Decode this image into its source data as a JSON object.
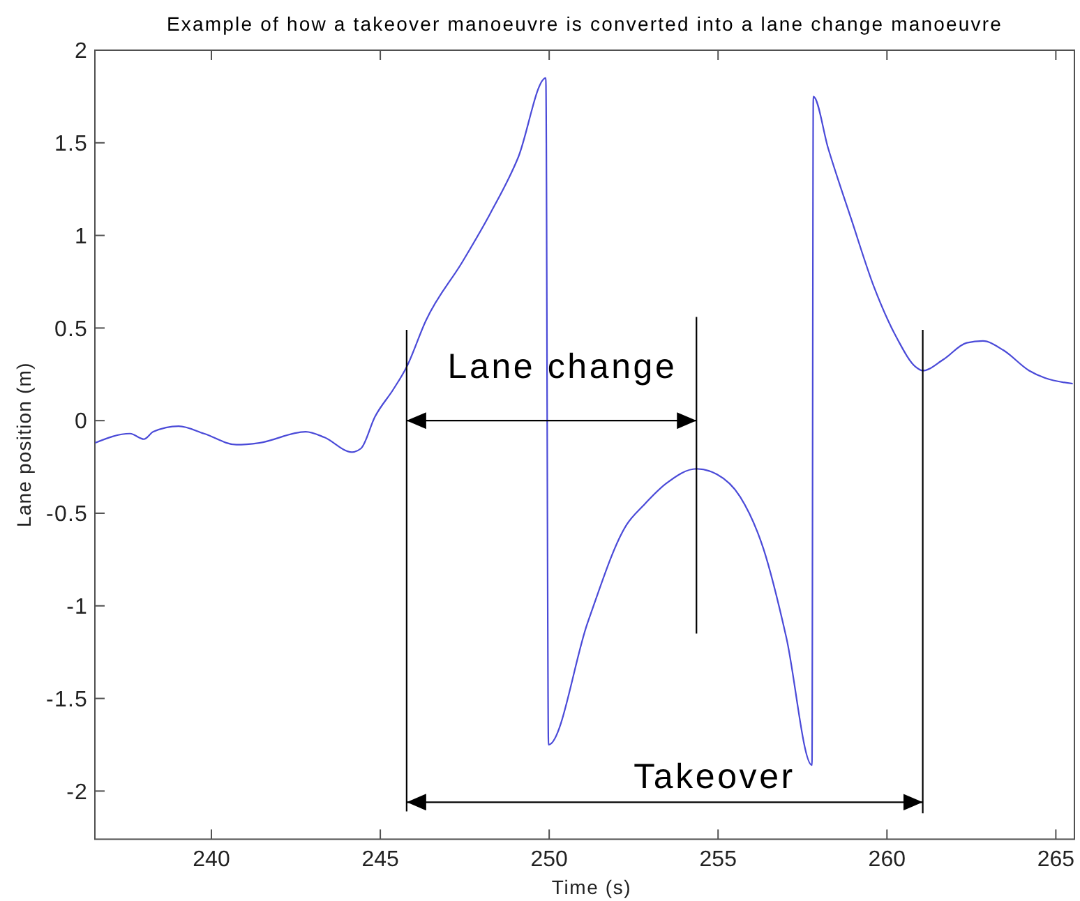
{
  "chart_data": {
    "type": "line",
    "title": "Example of how a takeover manoeuvre is converted into a lane change manoeuvre",
    "xlabel": "Time (s)",
    "ylabel": "Lane position (m)",
    "xlim": [
      236.55,
      265.55
    ],
    "xticks": [
      240,
      245,
      250,
      255,
      260,
      265
    ],
    "ylim": [
      -2.26,
      2
    ],
    "yticks": [
      -2,
      -1.5,
      -1,
      -0.5,
      0,
      0.5,
      1,
      1.5,
      2
    ],
    "series": [
      {
        "color": "#4a4ad8",
        "x": [
          236.56,
          237.59,
          238.0,
          238.28,
          239.03,
          239.78,
          240.74,
          241.42,
          242.79,
          243.34,
          244.16,
          244.43,
          244.84,
          245.39,
          245.78,
          246.35,
          247.44,
          248.26,
          249.08,
          249.9,
          249.98,
          251.14,
          252.3,
          252.78,
          253.46,
          254.36,
          254.97,
          255.65,
          256.34,
          257.02,
          257.78,
          257.82,
          258.26,
          258.94,
          259.62,
          260.31,
          260.85,
          261.06,
          261.67,
          262.36,
          262.84,
          263.45,
          264.21,
          264.68,
          265.5
        ],
        "values": [
          -0.12,
          -0.07,
          -0.1,
          -0.06,
          -0.03,
          -0.07,
          -0.13,
          -0.12,
          -0.06,
          -0.09,
          -0.17,
          -0.15,
          0.02,
          0.17,
          0.29,
          0.54,
          0.86,
          1.12,
          1.42,
          1.85,
          -1.75,
          -1.09,
          -0.56,
          -0.46,
          -0.34,
          -0.26,
          -0.29,
          -0.41,
          -0.69,
          -1.17,
          -1.86,
          1.75,
          1.47,
          1.09,
          0.72,
          0.44,
          0.29,
          0.27,
          0.33,
          0.42,
          0.43,
          0.38,
          0.27,
          0.23,
          0.2
        ]
      },
      {
        "color": "#000000",
        "x": [
          245.78,
          245.78
        ],
        "values": [
          0.49,
          -2.11
        ]
      },
      {
        "color": "#000000",
        "x": [
          254.36,
          254.36
        ],
        "values": [
          0.56,
          -1.15
        ]
      },
      {
        "color": "#000000",
        "x": [
          261.06,
          261.06
        ],
        "values": [
          0.49,
          -2.12
        ]
      },
      {
        "color": "#000000",
        "x": [
          245.78,
          254.36
        ],
        "values": [
          0,
          0
        ]
      },
      {
        "color": "#000000",
        "x": [
          245.78,
          261.06
        ],
        "values": [
          -2.06,
          -2.06
        ]
      }
    ],
    "annotations": [
      "Lane change",
      "Takeover"
    ]
  }
}
